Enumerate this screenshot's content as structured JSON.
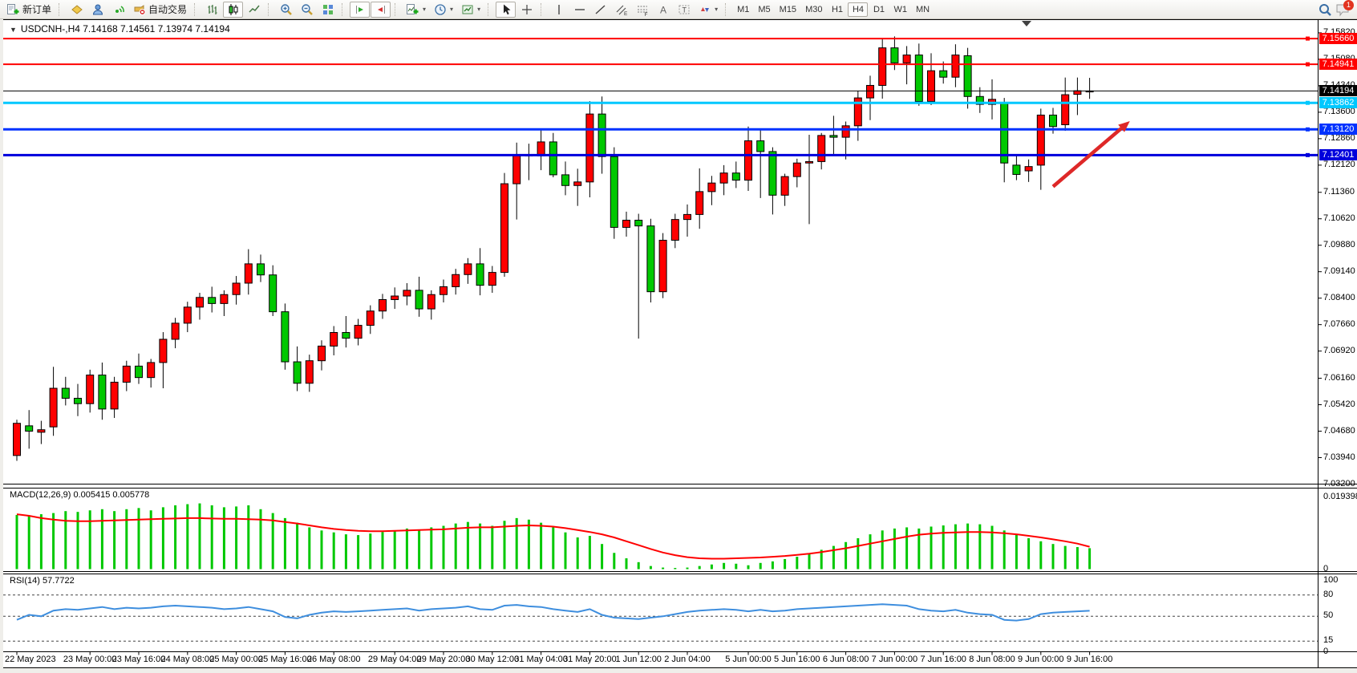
{
  "toolbar": {
    "new_order_label": "新订单",
    "auto_trading_label": "自动交易",
    "caret_glyph": "▾",
    "timeframes": [
      "M1",
      "M5",
      "M15",
      "M30",
      "H1",
      "H4",
      "D1",
      "W1",
      "MN"
    ],
    "active_timeframe": "H4",
    "notification_badge": "1",
    "icon_names": [
      "new-order",
      "market",
      "profile",
      "signals",
      "auto-trading",
      "ohlc-bars",
      "candlestick-chart",
      "line-chart",
      "zoom-in",
      "zoom-out",
      "tile-windows",
      "auto-scroll",
      "chart-shift",
      "indicators",
      "periods",
      "templates",
      "cursor",
      "crosshair",
      "vertical-line",
      "horizontal-line",
      "trendline",
      "equidistant-channel",
      "fibonacci",
      "text",
      "text-label",
      "arrows",
      "search",
      "chat"
    ]
  },
  "chart": {
    "collapse_glyph": "▼",
    "header": "USDCNH-,H4  7.14168 7.14561 7.13974 7.14194",
    "symbol": "USDCNH-",
    "period": "H4",
    "open": "7.14168",
    "high": "7.14561",
    "low": "7.13974",
    "close": "7.14194"
  },
  "indicators": {
    "macd": {
      "name": "MACD(12,26,9)",
      "values_text": "0.005415 0.005778"
    },
    "rsi": {
      "name": "RSI(14)",
      "value_text": "57.7722"
    }
  },
  "colors": {
    "candle_up": "#FF0000",
    "candle_down": "#00C800",
    "candle_border": "#000000",
    "macd_hist": "#00C800",
    "macd_signal": "#FF0000",
    "rsi_line": "#3E8EDE",
    "line_red": "#FF0000",
    "line_black": "#000000",
    "line_cyan": "#00C8FF",
    "line_blue1": "#0032FF",
    "line_blue2": "#0000DC",
    "arrow_red": "#DE2828"
  },
  "chart_data": [
    {
      "type": "candlestick",
      "title": "USDCNH-,H4",
      "ylim": [
        7.032,
        7.162
      ],
      "y_ticks": [
        "7.15820",
        "7.15080",
        "7.14340",
        "7.13600",
        "7.12860",
        "7.12120",
        "7.11360",
        "7.10620",
        "7.09880",
        "7.09140",
        "7.08400",
        "7.07660",
        "7.06920",
        "7.06160",
        "7.05420",
        "7.04680",
        "7.03940",
        "7.03200"
      ],
      "x_labels": [
        "22 May 2023",
        "23 May 00:00",
        "23 May 16:00",
        "24 May 08:00",
        "25 May 00:00",
        "25 May 16:00",
        "26 May 08:00",
        "29 May 04:00",
        "29 May 20:00",
        "30 May 12:00",
        "31 May 04:00",
        "31 May 20:00",
        "1 Jun 12:00",
        "2 Jun 04:00",
        "5 Jun 00:00",
        "5 Jun 16:00",
        "6 Jun 08:00",
        "7 Jun 00:00",
        "7 Jun 16:00",
        "8 Jun 08:00",
        "9 Jun 00:00",
        "9 Jun 16:00"
      ],
      "x_label_bars": [
        0,
        6,
        10,
        14,
        18,
        22,
        26,
        31,
        35,
        39,
        43,
        47,
        51,
        55,
        60,
        64,
        68,
        72,
        76,
        80,
        84,
        88
      ],
      "ohlc": [
        [
          7.04,
          7.05,
          7.0385,
          7.049
        ],
        [
          7.0483,
          7.0527,
          7.0419,
          7.0468
        ],
        [
          7.0465,
          7.0497,
          7.0432,
          7.0472
        ],
        [
          7.048,
          7.0648,
          7.0455,
          7.0588
        ],
        [
          7.0588,
          7.062,
          7.054,
          7.056
        ],
        [
          7.056,
          7.06,
          7.051,
          7.0545
        ],
        [
          7.0545,
          7.064,
          7.052,
          7.0625
        ],
        [
          7.0625,
          7.066,
          7.05,
          7.053
        ],
        [
          7.053,
          7.062,
          7.0505,
          7.0605
        ],
        [
          7.0605,
          7.0665,
          7.058,
          7.065
        ],
        [
          7.065,
          7.0685,
          7.06,
          7.0618
        ],
        [
          7.0618,
          7.067,
          7.059,
          7.066
        ],
        [
          7.066,
          7.0745,
          7.0588,
          7.0725
        ],
        [
          7.0725,
          7.0785,
          7.07,
          7.077
        ],
        [
          7.077,
          7.083,
          7.0745,
          7.0815
        ],
        [
          7.0815,
          7.0855,
          7.078,
          7.0842
        ],
        [
          7.0842,
          7.0872,
          7.08,
          7.0825
        ],
        [
          7.0825,
          7.0862,
          7.079,
          7.085
        ],
        [
          7.085,
          7.0902,
          7.0822,
          7.0882
        ],
        [
          7.0882,
          7.0977,
          7.085,
          7.0936
        ],
        [
          7.0936,
          7.0962,
          7.0885,
          7.0905
        ],
        [
          7.0905,
          7.0932,
          7.079,
          7.0802
        ],
        [
          7.0802,
          7.0825,
          7.064,
          7.0662
        ],
        [
          7.0662,
          7.0705,
          7.058,
          7.0602
        ],
        [
          7.0602,
          7.0682,
          7.0578,
          7.0665
        ],
        [
          7.0665,
          7.0722,
          7.0638,
          7.0706
        ],
        [
          7.0706,
          7.0762,
          7.068,
          7.0744
        ],
        [
          7.0744,
          7.079,
          7.0702,
          7.0728
        ],
        [
          7.0728,
          7.0782,
          7.0708,
          7.0764
        ],
        [
          7.0764,
          7.082,
          7.074,
          7.0804
        ],
        [
          7.0804,
          7.0852,
          7.0782,
          7.0836
        ],
        [
          7.0836,
          7.087,
          7.081,
          7.0846
        ],
        [
          7.0846,
          7.0882,
          7.082,
          7.0862
        ],
        [
          7.0862,
          7.09,
          7.0788,
          7.081
        ],
        [
          7.081,
          7.0862,
          7.078,
          7.085
        ],
        [
          7.085,
          7.0892,
          7.0828,
          7.0872
        ],
        [
          7.0872,
          7.0922,
          7.085,
          7.0906
        ],
        [
          7.0906,
          7.0952,
          7.088,
          7.0936
        ],
        [
          7.0936,
          7.098,
          7.0848,
          7.0876
        ],
        [
          7.0876,
          7.093,
          7.0855,
          7.0912
        ],
        [
          7.0912,
          7.119,
          7.09,
          7.116
        ],
        [
          7.116,
          7.1275,
          7.106,
          7.124
        ],
        [
          7.124,
          7.1272,
          7.117,
          7.1238
        ],
        [
          7.1238,
          7.131,
          7.1198,
          7.1277
        ],
        [
          7.1277,
          7.1302,
          7.1178,
          7.1185
        ],
        [
          7.1185,
          7.1222,
          7.1128,
          7.1155
        ],
        [
          7.1155,
          7.1202,
          7.1098,
          7.1165
        ],
        [
          7.1165,
          7.1391,
          7.1122,
          7.1355
        ],
        [
          7.1355,
          7.1404,
          7.1188,
          7.1236
        ],
        [
          7.1236,
          7.1262,
          7.1006,
          7.1038
        ],
        [
          7.1038,
          7.1082,
          7.1012,
          7.1058
        ],
        [
          7.1058,
          7.1076,
          7.0727,
          7.1042
        ],
        [
          7.1042,
          7.1062,
          7.0828,
          7.0858
        ],
        [
          7.0858,
          7.1022,
          7.084,
          7.1002
        ],
        [
          7.1002,
          7.1076,
          7.098,
          7.106
        ],
        [
          7.106,
          7.1102,
          7.1012,
          7.1074
        ],
        [
          7.1074,
          7.1203,
          7.1034,
          7.1138
        ],
        [
          7.1138,
          7.1182,
          7.11,
          7.1162
        ],
        [
          7.1162,
          7.1212,
          7.1128,
          7.119
        ],
        [
          7.119,
          7.1222,
          7.1148,
          7.117
        ],
        [
          7.117,
          7.132,
          7.114,
          7.128
        ],
        [
          7.128,
          7.131,
          7.112,
          7.125
        ],
        [
          7.125,
          7.1262,
          7.1074,
          7.1128
        ],
        [
          7.1128,
          7.1188,
          7.1098,
          7.118
        ],
        [
          7.118,
          7.123,
          7.115,
          7.1218
        ],
        [
          7.1218,
          7.1297,
          7.1047,
          7.1222
        ],
        [
          7.1222,
          7.1302,
          7.12,
          7.1295
        ],
        [
          7.1295,
          7.135,
          7.124,
          7.129
        ],
        [
          7.129,
          7.1334,
          7.1228,
          7.1322
        ],
        [
          7.1322,
          7.142,
          7.128,
          7.14
        ],
        [
          7.14,
          7.1462,
          7.1338,
          7.1435
        ],
        [
          7.1435,
          7.1566,
          7.1398,
          7.154
        ],
        [
          7.154,
          7.1572,
          7.1478,
          7.1498
        ],
        [
          7.1498,
          7.1545,
          7.1438,
          7.152
        ],
        [
          7.152,
          7.1552,
          7.1378,
          7.139
        ],
        [
          7.139,
          7.1525,
          7.138,
          7.1476
        ],
        [
          7.1476,
          7.1502,
          7.144,
          7.1458
        ],
        [
          7.1458,
          7.155,
          7.143,
          7.152
        ],
        [
          7.1518,
          7.154,
          7.137,
          7.1404
        ],
        [
          7.1404,
          7.143,
          7.1358,
          7.1382
        ],
        [
          7.1382,
          7.1452,
          7.134,
          7.1396
        ],
        [
          7.1386,
          7.14,
          7.1164,
          7.1218
        ],
        [
          7.1212,
          7.124,
          7.117,
          7.1186
        ],
        [
          7.1196,
          7.1228,
          7.1165,
          7.1208
        ],
        [
          7.1212,
          7.137,
          7.1143,
          7.1352
        ],
        [
          7.1352,
          7.1372,
          7.13,
          7.132
        ],
        [
          7.1325,
          7.1457,
          7.1308,
          7.1409
        ],
        [
          7.141,
          7.1457,
          7.1352,
          7.142
        ],
        [
          7.14168,
          7.14561,
          7.13974,
          7.14194
        ]
      ],
      "lines": [
        {
          "label": "7.15660",
          "price": 7.1566,
          "color": "#FF0000",
          "width": 2
        },
        {
          "label": "7.14941",
          "price": 7.14941,
          "color": "#FF0000",
          "width": 2
        },
        {
          "label": "7.14194",
          "price": 7.14194,
          "color": "#000000",
          "width": 1,
          "current": true
        },
        {
          "label": "7.13862",
          "price": 7.13862,
          "color": "#00C8FF",
          "width": 3
        },
        {
          "label": "7.13120",
          "price": 7.1312,
          "color": "#0032FF",
          "width": 3
        },
        {
          "label": "7.12401",
          "price": 7.12401,
          "color": "#0000DC",
          "width": 3
        }
      ],
      "arrow": {
        "from_bar": 85.0,
        "from_price": 7.1152,
        "to_bar": 91.3,
        "to_price": 7.1335,
        "color": "#DE2828"
      }
    },
    {
      "type": "bar",
      "name": "MACD(12,26,9)",
      "current_main": 0.005415,
      "current_signal": 0.005778,
      "ylim": [
        0,
        0.019398
      ],
      "y_tick_labels": [
        "0.019398",
        "0"
      ],
      "values": [
        0.014,
        0.0138,
        0.0142,
        0.0145,
        0.015,
        0.0148,
        0.0152,
        0.0155,
        0.015,
        0.0155,
        0.0158,
        0.0152,
        0.016,
        0.0165,
        0.0168,
        0.017,
        0.0165,
        0.016,
        0.0162,
        0.0165,
        0.0155,
        0.0145,
        0.0132,
        0.012,
        0.0108,
        0.01,
        0.0095,
        0.009,
        0.0088,
        0.0092,
        0.0096,
        0.01,
        0.0105,
        0.0102,
        0.0108,
        0.0112,
        0.0118,
        0.0122,
        0.0118,
        0.0112,
        0.0125,
        0.0132,
        0.0128,
        0.012,
        0.0108,
        0.0095,
        0.0082,
        0.0086,
        0.0065,
        0.0042,
        0.0028,
        0.0018,
        0.0008,
        0.0004,
        0.0003,
        0.0004,
        0.0008,
        0.0012,
        0.0016,
        0.0014,
        0.001,
        0.0016,
        0.002,
        0.0026,
        0.0032,
        0.004,
        0.005,
        0.006,
        0.007,
        0.008,
        0.009,
        0.01,
        0.0105,
        0.0108,
        0.0105,
        0.011,
        0.0113,
        0.0116,
        0.0118,
        0.0116,
        0.0112,
        0.01,
        0.009,
        0.008,
        0.0072,
        0.0065,
        0.006,
        0.0057,
        0.005415
      ],
      "signal": [
        0.0142,
        0.0138,
        0.0132,
        0.0128,
        0.0125,
        0.0124,
        0.0124,
        0.0125,
        0.0126,
        0.0127,
        0.0128,
        0.0129,
        0.013,
        0.0131,
        0.0132,
        0.0132,
        0.0131,
        0.013,
        0.013,
        0.0129,
        0.0128,
        0.0126,
        0.0122,
        0.0118,
        0.0113,
        0.0108,
        0.0104,
        0.0101,
        0.0099,
        0.0098,
        0.0098,
        0.0099,
        0.01,
        0.0101,
        0.0102,
        0.0103,
        0.0105,
        0.0107,
        0.0108,
        0.0108,
        0.011,
        0.0112,
        0.0113,
        0.0112,
        0.011,
        0.0106,
        0.0101,
        0.0096,
        0.009,
        0.0082,
        0.0072,
        0.0062,
        0.0052,
        0.0043,
        0.0036,
        0.0031,
        0.0028,
        0.0027,
        0.0027,
        0.0028,
        0.0029,
        0.003,
        0.0032,
        0.0034,
        0.0037,
        0.004,
        0.0044,
        0.0049,
        0.0054,
        0.006,
        0.0066,
        0.0072,
        0.0078,
        0.0084,
        0.0089,
        0.0092,
        0.0094,
        0.0095,
        0.0096,
        0.0096,
        0.0095,
        0.0093,
        0.009,
        0.0086,
        0.0082,
        0.0077,
        0.0072,
        0.0066,
        0.005778
      ]
    },
    {
      "type": "line",
      "name": "RSI(14)",
      "current_value": 57.7722,
      "ylim": [
        0,
        100
      ],
      "levels": [
        80,
        50,
        15
      ],
      "y_tick_labels": [
        "100",
        "80",
        "50",
        "15",
        "0"
      ],
      "values": [
        45,
        52,
        50,
        58,
        60,
        59,
        61,
        63,
        60,
        62,
        61,
        62,
        64,
        65,
        64,
        63,
        62,
        60,
        61,
        63,
        60,
        57,
        49,
        47,
        52,
        55,
        57,
        56,
        57,
        58,
        59,
        60,
        61,
        58,
        60,
        61,
        62,
        64,
        60,
        59,
        65,
        66,
        64,
        63,
        60,
        58,
        56,
        60,
        52,
        48,
        47,
        46,
        48,
        50,
        53,
        56,
        58,
        59,
        60,
        59,
        57,
        59,
        57,
        58,
        60,
        61,
        62,
        63,
        64,
        65,
        66,
        67,
        66,
        65,
        60,
        58,
        57,
        59,
        55,
        53,
        52,
        45,
        44,
        46,
        53,
        55,
        56,
        57,
        57.7722
      ]
    }
  ]
}
